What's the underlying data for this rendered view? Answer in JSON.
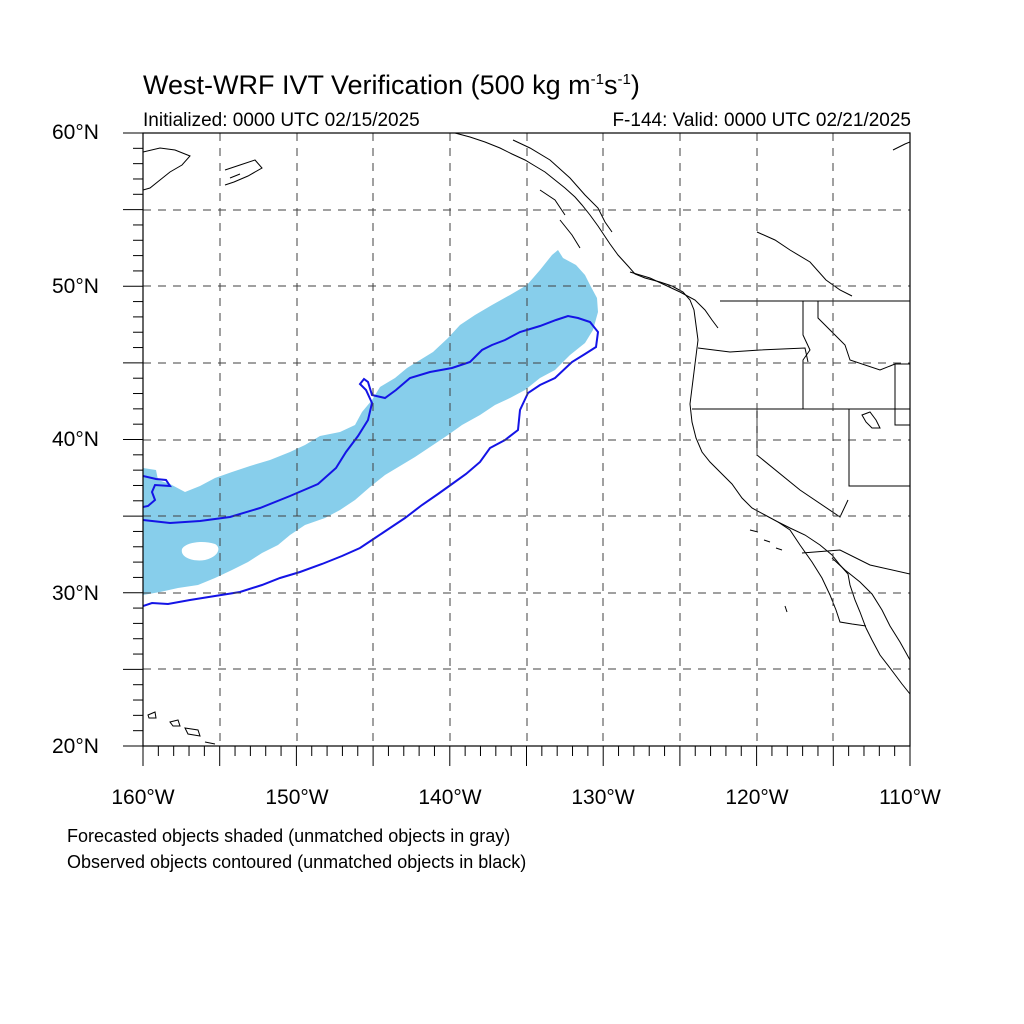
{
  "title": {
    "main": "West-WRF IVT Verification (500 kg m",
    "exp1": "-1",
    "mid": "s",
    "exp2": "-1",
    "end": ")"
  },
  "subtitle": {
    "initialized": "Initialized: 0000 UTC 02/15/2025",
    "valid": "F-144: Valid: 0000 UTC 02/21/2025"
  },
  "map": {
    "lon_range": [
      -160,
      -110
    ],
    "lat_range": [
      20,
      60
    ],
    "lat_ticks": [
      "20°N",
      "30°N",
      "40°N",
      "50°N",
      "60°N"
    ],
    "lon_ticks": [
      "160°W",
      "150°W",
      "140°W",
      "130°W",
      "120°W",
      "110°W"
    ],
    "grid": "dashed, every 5 degrees",
    "forecast_fill_color": "#87ceeb",
    "observed_contour_color": "#1010ee",
    "coast_color": "#000000"
  },
  "notes": {
    "line1": "Forecasted objects shaded (unmatched objects in gray)",
    "line2": "Observed objects contoured (unmatched objects in black)"
  }
}
